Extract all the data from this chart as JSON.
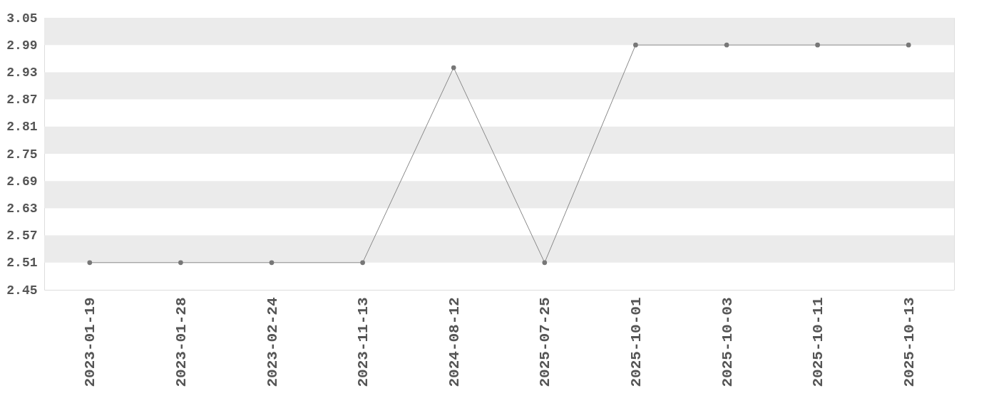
{
  "chart_data": {
    "type": "line",
    "categories": [
      "2023-01-19",
      "2023-01-28",
      "2023-02-24",
      "2023-11-13",
      "2024-08-12",
      "2025-07-25",
      "2025-10-01",
      "2025-10-03",
      "2025-10-11",
      "2025-10-13"
    ],
    "series": [
      {
        "color": "#777777",
        "values": [
          2.51,
          2.51,
          2.51,
          2.51,
          2.94,
          2.51,
          2.99,
          2.99,
          2.99,
          2.99
        ]
      }
    ],
    "ylim": [
      2.45,
      3.05
    ],
    "yticks": [
      2.45,
      2.51,
      2.57,
      2.63,
      2.69,
      2.75,
      2.81,
      2.87,
      2.93,
      2.99,
      3.05
    ],
    "bands": [
      {
        "axis": "y",
        "from": 2.51,
        "to": 2.57,
        "color": "#ebebeb"
      },
      {
        "axis": "y",
        "from": 2.63,
        "to": 2.69,
        "color": "#ebebeb"
      },
      {
        "axis": "y",
        "from": 2.75,
        "to": 2.81,
        "color": "#ebebeb"
      },
      {
        "axis": "y",
        "from": 2.87,
        "to": 2.93,
        "color": "#ebebeb"
      },
      {
        "axis": "y",
        "from": 2.99,
        "to": 3.05,
        "color": "#ebebeb"
      }
    ],
    "grid": false,
    "marker": "circle",
    "line_style": "solid"
  }
}
